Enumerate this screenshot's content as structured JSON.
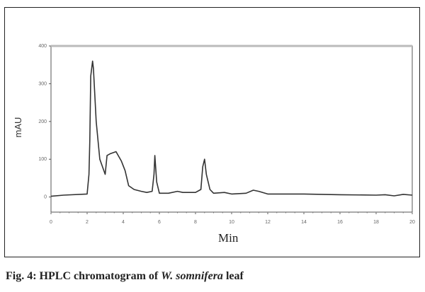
{
  "chart_data": {
    "type": "line",
    "title": "",
    "xlabel": "Min",
    "ylabel": "mAU",
    "xlim": [
      0,
      20
    ],
    "ylim": [
      -40,
      400
    ],
    "xticks": [
      0,
      2,
      4,
      6,
      8,
      10,
      12,
      14,
      16,
      18,
      20
    ],
    "yticks": [
      0,
      100,
      200,
      300,
      400
    ],
    "grid": false,
    "series": [
      {
        "name": "HPLC chromatogram",
        "color": "#333333",
        "x": [
          0,
          0.7,
          2,
          2.1,
          2.15,
          2.2,
          2.3,
          2.35,
          2.5,
          2.7,
          3,
          3.1,
          3.3,
          3.6,
          3.9,
          4.1,
          4.3,
          4.6,
          5,
          5.3,
          5.6,
          5.7,
          5.75,
          5.85,
          6,
          6.5,
          7,
          7.3,
          8,
          8.3,
          8.4,
          8.5,
          8.6,
          8.8,
          9,
          9.6,
          10,
          10.8,
          11.2,
          11.5,
          12,
          14,
          16,
          18,
          18.5,
          19,
          19.5,
          20
        ],
        "y": [
          2,
          5,
          8,
          60,
          150,
          320,
          360,
          340,
          200,
          100,
          60,
          110,
          115,
          120,
          95,
          70,
          30,
          20,
          15,
          12,
          15,
          60,
          110,
          40,
          10,
          10,
          15,
          12,
          12,
          20,
          80,
          100,
          60,
          20,
          10,
          12,
          8,
          10,
          18,
          15,
          8,
          8,
          6,
          5,
          6,
          3,
          7,
          5
        ]
      }
    ]
  },
  "caption": {
    "prefix": "Fig. 4: HPLC chromatogram of ",
    "species": "W. somnifera",
    "suffix": " leaf"
  }
}
